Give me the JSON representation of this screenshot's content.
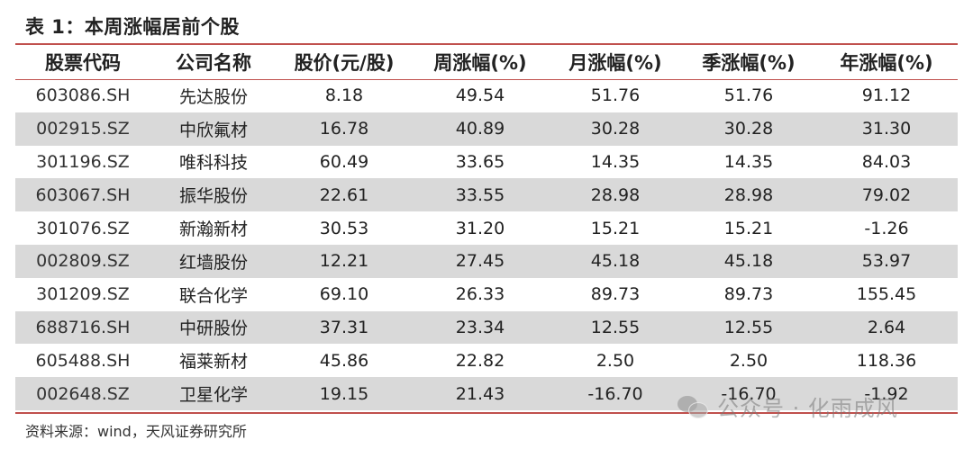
{
  "title": "表 1：本周涨幅居前个股",
  "table": {
    "headers": [
      "股票代码",
      "公司名称",
      "股价(元/股)",
      "周涨幅(%)",
      "月涨幅(%)",
      "季涨幅(%)",
      "年涨幅(%)"
    ],
    "rows": [
      [
        "603086.SH",
        "先达股份",
        "8.18",
        "49.54",
        "51.76",
        "51.76",
        "91.12"
      ],
      [
        "002915.SZ",
        "中欣氟材",
        "16.78",
        "40.89",
        "30.28",
        "30.28",
        "31.30"
      ],
      [
        "301196.SZ",
        "唯科科技",
        "60.49",
        "33.65",
        "14.35",
        "14.35",
        "84.03"
      ],
      [
        "603067.SH",
        "振华股份",
        "22.61",
        "33.55",
        "28.98",
        "28.98",
        "79.02"
      ],
      [
        "301076.SZ",
        "新瀚新材",
        "30.53",
        "31.20",
        "15.21",
        "15.21",
        "-1.26"
      ],
      [
        "002809.SZ",
        "红墙股份",
        "12.21",
        "27.45",
        "45.18",
        "45.18",
        "53.97"
      ],
      [
        "301209.SZ",
        "联合化学",
        "69.10",
        "26.33",
        "89.73",
        "89.73",
        "155.45"
      ],
      [
        "688716.SH",
        "中研股份",
        "37.31",
        "23.34",
        "12.55",
        "12.55",
        "2.64"
      ],
      [
        "605488.SH",
        "福莱新材",
        "45.86",
        "22.82",
        "2.50",
        "2.50",
        "118.36"
      ],
      [
        "002648.SZ",
        "卫星化学",
        "19.15",
        "21.43",
        "-16.70",
        "-16.70",
        "-1.92"
      ]
    ]
  },
  "source": "资料来源：wind，天风证券研究所",
  "watermark": "公众号 · 化雨成风",
  "colors": {
    "rule": "#c0504d",
    "shade": "#d9d9d9"
  }
}
